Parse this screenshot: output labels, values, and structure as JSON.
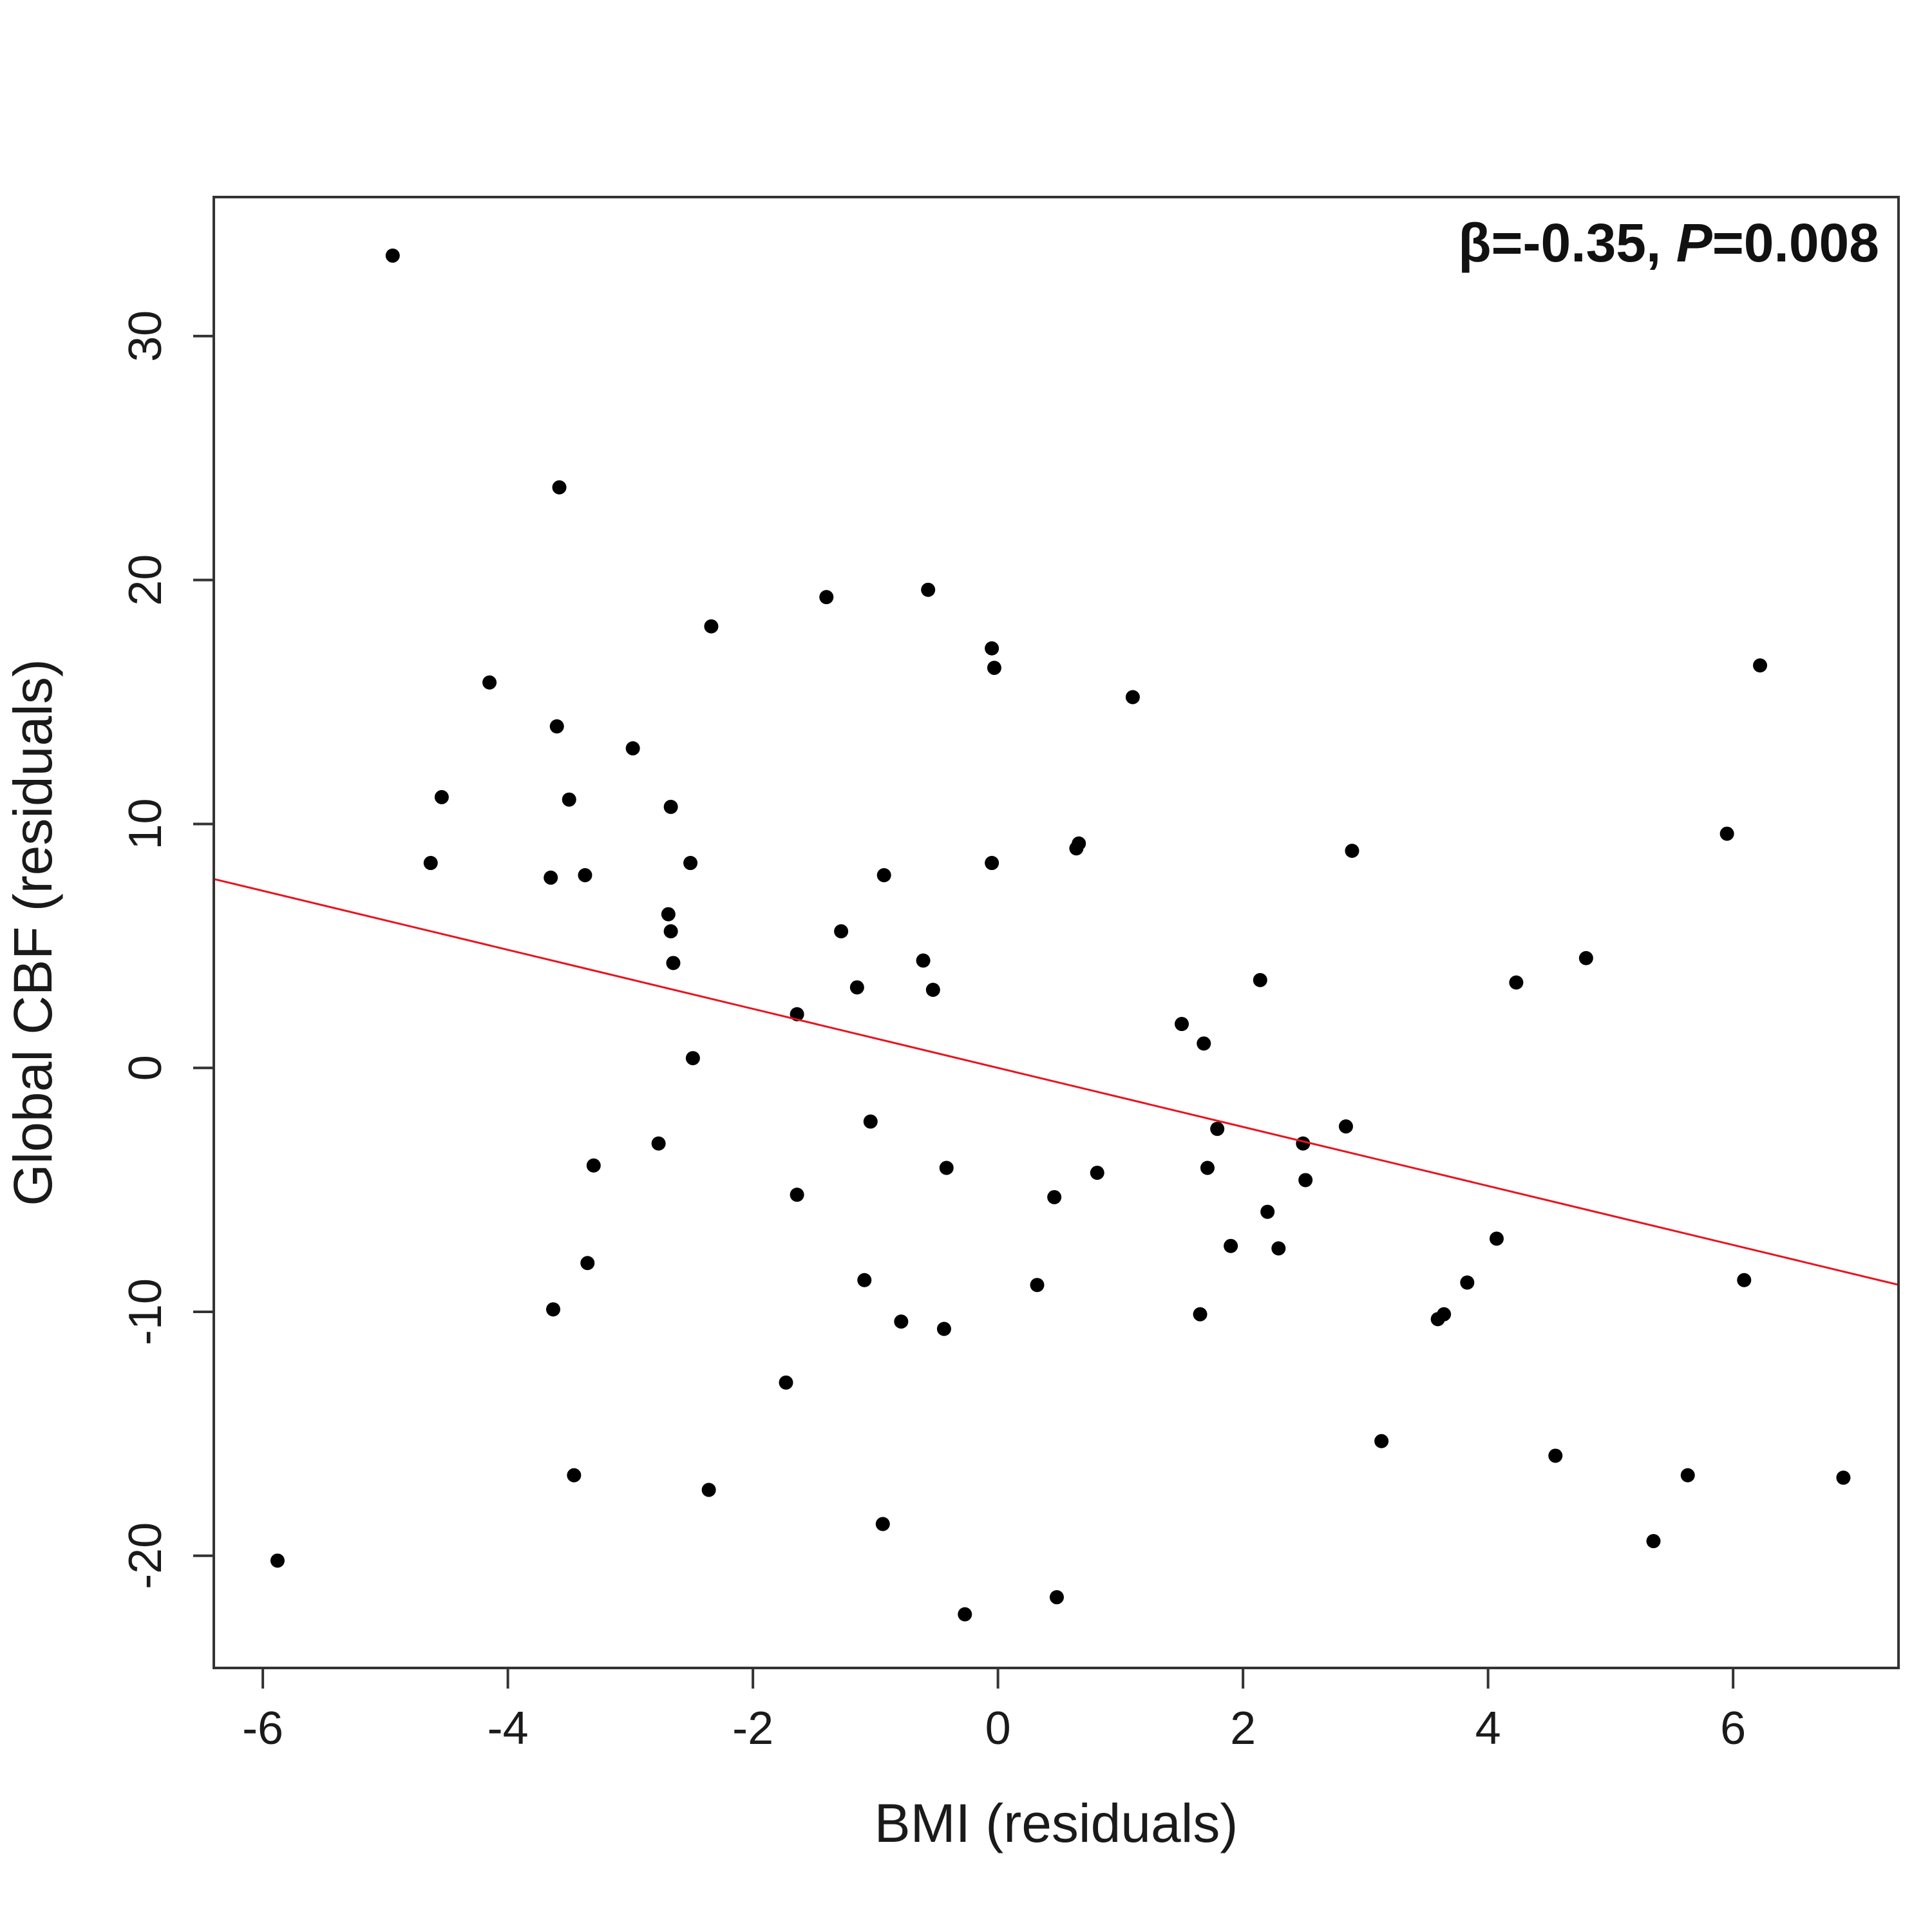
{
  "chart_data": {
    "type": "scatter",
    "title": "",
    "xlabel": "BMI (residuals)",
    "ylabel": "Global CBF (residuals)",
    "xlim": [
      -6.4,
      7.35
    ],
    "ylim": [
      -24.6,
      35.7
    ],
    "x_ticks": [
      -6,
      -4,
      -2,
      0,
      2,
      4,
      6
    ],
    "y_ticks": [
      -20,
      -10,
      0,
      10,
      20,
      30
    ],
    "x_tick_labels": [
      "-6",
      "-4",
      "-2",
      "0",
      "2",
      "4",
      "6"
    ],
    "y_tick_labels": [
      "-20",
      "-10",
      "0",
      "10",
      "20",
      "30"
    ],
    "grid": false,
    "legend": "none",
    "annotation": {
      "prefix": "β=-0.35, ",
      "italic": "P",
      "suffix": "=0.008"
    },
    "point_color": "#000000",
    "line_color": "#e8141e",
    "fit_line": {
      "slope": -1.21,
      "intercept": 0.0
    },
    "points": [
      {
        "x": -4.94,
        "y": 33.3
      },
      {
        "x": -3.58,
        "y": 23.8
      },
      {
        "x": -0.57,
        "y": 19.6
      },
      {
        "x": -1.4,
        "y": 19.3
      },
      {
        "x": -2.34,
        "y": 18.1
      },
      {
        "x": -0.05,
        "y": 17.2
      },
      {
        "x": -0.03,
        "y": 16.4
      },
      {
        "x": 6.22,
        "y": 16.5
      },
      {
        "x": -4.15,
        "y": 15.8
      },
      {
        "x": 1.1,
        "y": 15.2
      },
      {
        "x": -3.6,
        "y": 14.0
      },
      {
        "x": -2.98,
        "y": 13.1
      },
      {
        "x": -4.54,
        "y": 11.1
      },
      {
        "x": -3.5,
        "y": 11.0
      },
      {
        "x": -2.67,
        "y": 10.7
      },
      {
        "x": 5.95,
        "y": 9.6
      },
      {
        "x": 0.64,
        "y": 9.0
      },
      {
        "x": 0.66,
        "y": 9.2
      },
      {
        "x": 2.89,
        "y": 8.9
      },
      {
        "x": -4.63,
        "y": 8.4
      },
      {
        "x": -2.51,
        "y": 8.4
      },
      {
        "x": -0.05,
        "y": 8.4
      },
      {
        "x": -3.65,
        "y": 7.8
      },
      {
        "x": -3.37,
        "y": 7.9
      },
      {
        "x": -0.93,
        "y": 7.9
      },
      {
        "x": -2.69,
        "y": 6.3
      },
      {
        "x": -2.67,
        "y": 5.6
      },
      {
        "x": -1.28,
        "y": 5.6
      },
      {
        "x": 4.8,
        "y": 4.5
      },
      {
        "x": -2.65,
        "y": 4.3
      },
      {
        "x": -0.61,
        "y": 4.4
      },
      {
        "x": 2.14,
        "y": 3.6
      },
      {
        "x": 4.23,
        "y": 3.5
      },
      {
        "x": -1.15,
        "y": 3.3
      },
      {
        "x": -0.53,
        "y": 3.2
      },
      {
        "x": -1.64,
        "y": 2.2
      },
      {
        "x": 1.5,
        "y": 1.8
      },
      {
        "x": 1.68,
        "y": 1.0
      },
      {
        "x": -2.49,
        "y": 0.4
      },
      {
        "x": -1.04,
        "y": -2.2
      },
      {
        "x": 2.84,
        "y": -2.4
      },
      {
        "x": 1.79,
        "y": -2.5
      },
      {
        "x": -2.77,
        "y": -3.1
      },
      {
        "x": 2.49,
        "y": -3.1
      },
      {
        "x": -3.3,
        "y": -4.0
      },
      {
        "x": -0.42,
        "y": -4.1
      },
      {
        "x": 1.71,
        "y": -4.1
      },
      {
        "x": 0.81,
        "y": -4.3
      },
      {
        "x": 2.51,
        "y": -4.6
      },
      {
        "x": -1.64,
        "y": -5.2
      },
      {
        "x": 0.46,
        "y": -5.3
      },
      {
        "x": 2.2,
        "y": -5.9
      },
      {
        "x": 4.07,
        "y": -7.0
      },
      {
        "x": 1.9,
        "y": -7.3
      },
      {
        "x": 2.29,
        "y": -7.4
      },
      {
        "x": -3.35,
        "y": -8.0
      },
      {
        "x": -1.09,
        "y": -8.7
      },
      {
        "x": 6.09,
        "y": -8.7
      },
      {
        "x": 3.83,
        "y": -8.8
      },
      {
        "x": 0.32,
        "y": -8.9
      },
      {
        "x": -3.63,
        "y": -9.9
      },
      {
        "x": 1.65,
        "y": -10.1
      },
      {
        "x": 3.64,
        "y": -10.1
      },
      {
        "x": 3.59,
        "y": -10.3
      },
      {
        "x": -0.79,
        "y": -10.4
      },
      {
        "x": -0.44,
        "y": -10.7
      },
      {
        "x": -1.73,
        "y": -12.9
      },
      {
        "x": 3.13,
        "y": -15.3
      },
      {
        "x": 4.55,
        "y": -15.9
      },
      {
        "x": -3.46,
        "y": -16.7
      },
      {
        "x": 5.63,
        "y": -16.7
      },
      {
        "x": 6.9,
        "y": -16.8
      },
      {
        "x": -2.36,
        "y": -17.3
      },
      {
        "x": -0.94,
        "y": -18.7
      },
      {
        "x": 5.35,
        "y": -19.4
      },
      {
        "x": -5.88,
        "y": -20.2
      },
      {
        "x": 0.48,
        "y": -21.7
      },
      {
        "x": -0.27,
        "y": -22.4
      }
    ]
  }
}
